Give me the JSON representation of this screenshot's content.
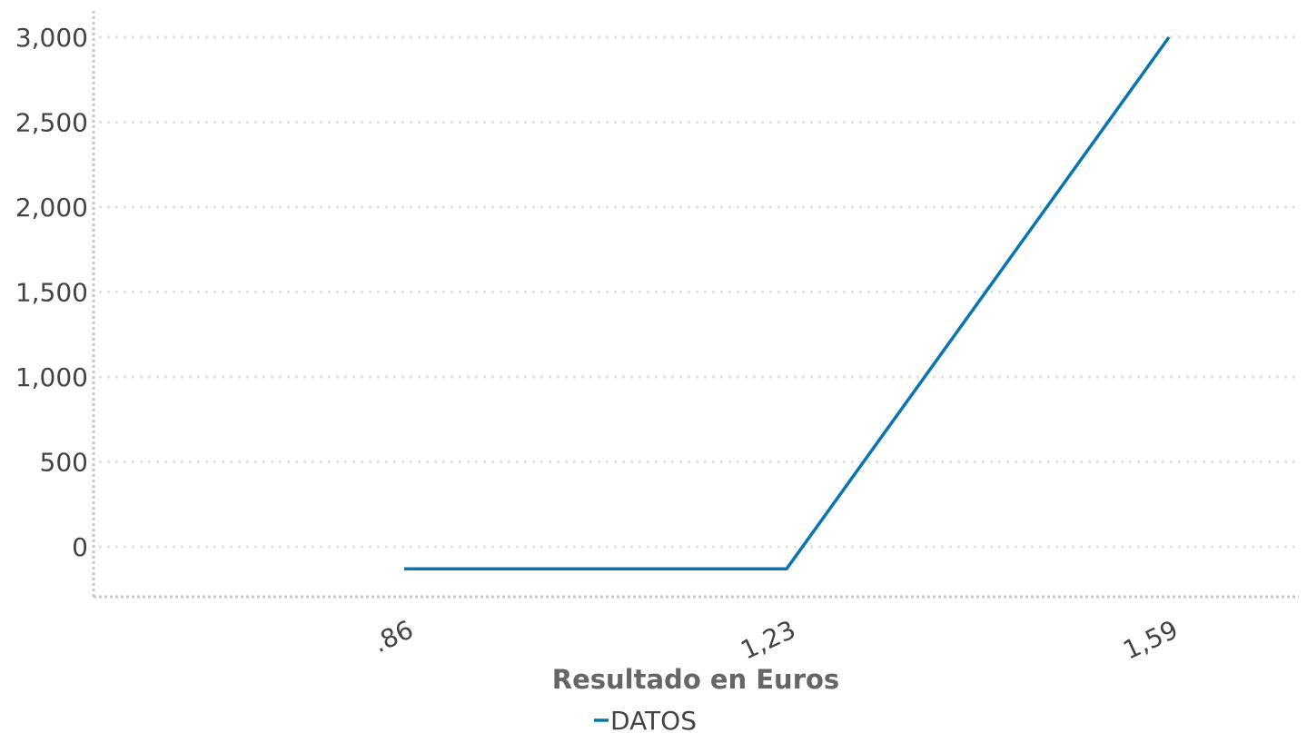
{
  "chart_data": {
    "type": "line",
    "title": "",
    "xlabel": "Resultado en Euros",
    "ylabel": "",
    "categories": [
      ".86",
      "1,23",
      "1,59"
    ],
    "series": [
      {
        "name": "DATOS",
        "values": [
          -130,
          -130,
          3000
        ],
        "color": "#0a74b0"
      }
    ],
    "yticks": [
      0,
      500,
      1000,
      1500,
      2000,
      2500,
      3000
    ],
    "ytick_labels": [
      "0",
      "500",
      "1,000",
      "1,500",
      "2,000",
      "2,500",
      "3,000"
    ],
    "ylim": [
      -290,
      3150
    ],
    "grid": true,
    "legend": "bottom-center"
  }
}
